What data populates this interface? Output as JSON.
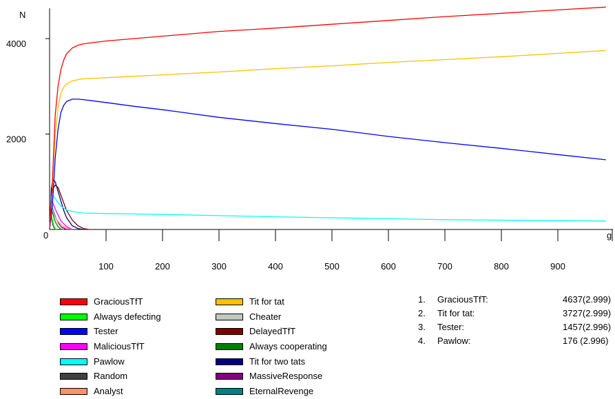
{
  "chart_data": {
    "type": "line",
    "ylabel": "N",
    "xlabel": "g",
    "xlim": [
      0,
      985
    ],
    "ylim": [
      0,
      4650
    ],
    "x_ticks": [
      100,
      200,
      300,
      400,
      500,
      600,
      700,
      800,
      900
    ],
    "y_ticks": [
      2000,
      4000
    ],
    "origin_label": "0",
    "series": [
      {
        "name": "GraciousTfT",
        "color": "#ff0000",
        "x": [
          0,
          5,
          10,
          15,
          20,
          25,
          30,
          40,
          50,
          60,
          80,
          100,
          150,
          200,
          300,
          400,
          500,
          600,
          700,
          800,
          900,
          985
        ],
        "y": [
          0,
          1000,
          2400,
          3000,
          3350,
          3550,
          3680,
          3800,
          3860,
          3890,
          3920,
          3950,
          4000,
          4050,
          4150,
          4220,
          4300,
          4380,
          4460,
          4530,
          4600,
          4660
        ]
      },
      {
        "name": "Tit for tat",
        "color": "#ffc000",
        "x": [
          0,
          5,
          10,
          15,
          20,
          25,
          30,
          40,
          50,
          60,
          80,
          100,
          150,
          200,
          300,
          400,
          500,
          600,
          700,
          800,
          900,
          985
        ],
        "y": [
          0,
          900,
          2000,
          2550,
          2850,
          2980,
          3050,
          3110,
          3140,
          3160,
          3170,
          3180,
          3210,
          3240,
          3300,
          3370,
          3430,
          3500,
          3560,
          3620,
          3690,
          3750
        ]
      },
      {
        "name": "Tester",
        "color": "#0000ff",
        "x": [
          0,
          5,
          10,
          15,
          20,
          25,
          30,
          40,
          50,
          60,
          80,
          100,
          150,
          200,
          300,
          400,
          500,
          600,
          700,
          800,
          900,
          985
        ],
        "y": [
          0,
          500,
          1500,
          2100,
          2450,
          2600,
          2680,
          2730,
          2730,
          2720,
          2690,
          2660,
          2580,
          2510,
          2350,
          2220,
          2100,
          1950,
          1820,
          1700,
          1570,
          1460
        ]
      },
      {
        "name": "Pawlow",
        "color": "#00ffff",
        "x": [
          0,
          3,
          5,
          10,
          15,
          20,
          25,
          30,
          40,
          50,
          60,
          80,
          100,
          150,
          200,
          300,
          400,
          500,
          600,
          700,
          800,
          900,
          985
        ],
        "y": [
          0,
          700,
          720,
          650,
          560,
          490,
          450,
          410,
          380,
          360,
          345,
          340,
          335,
          325,
          315,
          290,
          265,
          245,
          225,
          205,
          195,
          185,
          176
        ]
      },
      {
        "name": "Always defecting",
        "color": "#00ff00",
        "x": [
          0,
          2,
          4,
          6,
          8,
          10,
          12
        ],
        "y": [
          0,
          350,
          250,
          150,
          60,
          15,
          0
        ]
      },
      {
        "name": "Cheater",
        "color": "#c0c8c0",
        "x": [
          0,
          3,
          6,
          10,
          15,
          20,
          25
        ],
        "y": [
          0,
          500,
          380,
          250,
          120,
          40,
          0
        ]
      },
      {
        "name": "MaliciousTfT",
        "color": "#ff00ff",
        "x": [
          0,
          3,
          6,
          10,
          15,
          20,
          30,
          40
        ],
        "y": [
          0,
          600,
          550,
          430,
          300,
          180,
          60,
          0
        ]
      },
      {
        "name": "DelayedTfT",
        "color": "#800000",
        "x": [
          0,
          3,
          6,
          10,
          15,
          20,
          30,
          40,
          50,
          60,
          70
        ],
        "y": [
          0,
          700,
          850,
          930,
          880,
          720,
          400,
          200,
          80,
          20,
          0
        ]
      },
      {
        "name": "Random",
        "color": "#404040",
        "x": [
          0,
          2,
          4,
          6,
          8,
          10
        ],
        "y": [
          0,
          300,
          200,
          90,
          30,
          0
        ]
      },
      {
        "name": "Always cooperating",
        "color": "#008000",
        "x": [
          0,
          3,
          6,
          10,
          15,
          20
        ],
        "y": [
          0,
          400,
          320,
          160,
          60,
          0
        ]
      },
      {
        "name": "Analyst",
        "color": "#ff9070",
        "x": [
          0,
          3,
          6,
          10,
          15,
          20,
          30,
          40
        ],
        "y": [
          0,
          380,
          330,
          260,
          170,
          100,
          30,
          0
        ]
      },
      {
        "name": "Tit for two tats",
        "color": "#000080",
        "x": [
          0,
          3,
          6,
          10,
          15,
          20,
          25,
          30,
          40,
          50,
          60
        ],
        "y": [
          0,
          850,
          1050,
          1000,
          800,
          600,
          400,
          250,
          80,
          20,
          0
        ]
      },
      {
        "name": "MassiveResponse",
        "color": "#800080",
        "x": [
          0,
          3,
          6,
          10,
          15,
          20,
          30
        ],
        "y": [
          0,
          450,
          380,
          260,
          140,
          60,
          0
        ]
      },
      {
        "name": "EternalRevenge",
        "color": "#008080",
        "x": [
          0,
          3,
          6,
          10,
          15,
          20,
          25
        ],
        "y": [
          0,
          500,
          420,
          280,
          140,
          50,
          0
        ]
      }
    ],
    "grid": false
  },
  "legend": {
    "col1": [
      {
        "label": "GraciousTfT",
        "color": "#ff0000"
      },
      {
        "label": "Always defecting",
        "color": "#00ff00"
      },
      {
        "label": "Tester",
        "color": "#0000ff"
      },
      {
        "label": "MaliciousTfT",
        "color": "#ff00ff"
      },
      {
        "label": "Pawlow",
        "color": "#00ffff"
      },
      {
        "label": "Random",
        "color": "#404040"
      },
      {
        "label": "Analyst",
        "color": "#ff9070"
      }
    ],
    "col2": [
      {
        "label": "Tit for tat",
        "color": "#ffc000"
      },
      {
        "label": "Cheater",
        "color": "#c0c8c0"
      },
      {
        "label": "DelayedTfT",
        "color": "#800000"
      },
      {
        "label": "Always cooperating",
        "color": "#008000"
      },
      {
        "label": "Tit for two tats",
        "color": "#000080"
      },
      {
        "label": "MassiveResponse",
        "color": "#800080"
      },
      {
        "label": "EternalRevenge",
        "color": "#008080"
      }
    ]
  },
  "ranking": [
    {
      "num": "1.",
      "name": "GraciousTfT:",
      "value": "4637(2.999)"
    },
    {
      "num": "2.",
      "name": "Tit for tat:",
      "value": "3727(2.999)"
    },
    {
      "num": "3.",
      "name": "Tester:",
      "value": "1457(2.996)"
    },
    {
      "num": "4.",
      "name": "Pawlow:",
      "value": "176 (2.996)"
    }
  ]
}
